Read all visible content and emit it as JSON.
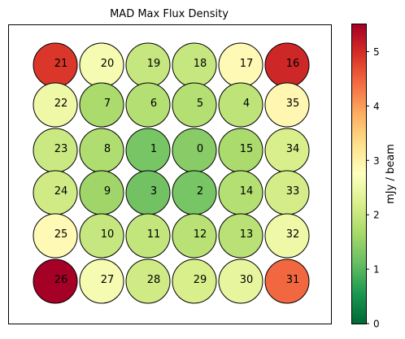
{
  "chart_data": {
    "type": "heatmap",
    "title": "MAD Max Flux Density",
    "xlabel": "",
    "ylabel": "",
    "colorbar": {
      "label": "mJy / beam",
      "range": [
        0,
        5.5
      ],
      "ticks": [
        "0",
        "1",
        "2",
        "3",
        "4",
        "5"
      ],
      "colormap": "RdYlGn_r",
      "colors": [
        "#006837",
        "#1a9850",
        "#66bd63",
        "#a6d96a",
        "#d9ef8b",
        "#ffffbf",
        "#fee08b",
        "#fdae61",
        "#f46d43",
        "#d73027",
        "#a50026"
      ]
    },
    "grid": false,
    "layout": "6 rows x 6 columns of circles",
    "cells": [
      {
        "label": "21",
        "row": 0,
        "col": 0,
        "value": 4.9
      },
      {
        "label": "20",
        "row": 0,
        "col": 1,
        "value": 2.6
      },
      {
        "label": "19",
        "row": 0,
        "col": 2,
        "value": 2.0
      },
      {
        "label": "18",
        "row": 0,
        "col": 3,
        "value": 2.0
      },
      {
        "label": "17",
        "row": 0,
        "col": 4,
        "value": 2.85
      },
      {
        "label": "16",
        "row": 0,
        "col": 5,
        "value": 5.05
      },
      {
        "label": "22",
        "row": 1,
        "col": 0,
        "value": 2.5
      },
      {
        "label": "7",
        "row": 1,
        "col": 1,
        "value": 1.7
      },
      {
        "label": "6",
        "row": 1,
        "col": 2,
        "value": 1.8
      },
      {
        "label": "5",
        "row": 1,
        "col": 3,
        "value": 1.8
      },
      {
        "label": "4",
        "row": 1,
        "col": 4,
        "value": 1.9
      },
      {
        "label": "35",
        "row": 1,
        "col": 5,
        "value": 2.9
      },
      {
        "label": "23",
        "row": 2,
        "col": 0,
        "value": 2.05
      },
      {
        "label": "8",
        "row": 2,
        "col": 1,
        "value": 1.75
      },
      {
        "label": "1",
        "row": 2,
        "col": 2,
        "value": 1.25
      },
      {
        "label": "0",
        "row": 2,
        "col": 3,
        "value": 1.4
      },
      {
        "label": "15",
        "row": 2,
        "col": 4,
        "value": 1.7
      },
      {
        "label": "34",
        "row": 2,
        "col": 5,
        "value": 2.2
      },
      {
        "label": "24",
        "row": 3,
        "col": 0,
        "value": 2.1
      },
      {
        "label": "9",
        "row": 3,
        "col": 1,
        "value": 1.6
      },
      {
        "label": "3",
        "row": 3,
        "col": 2,
        "value": 1.2
      },
      {
        "label": "2",
        "row": 3,
        "col": 3,
        "value": 1.25
      },
      {
        "label": "14",
        "row": 3,
        "col": 4,
        "value": 1.8
      },
      {
        "label": "33",
        "row": 3,
        "col": 5,
        "value": 2.15
      },
      {
        "label": "25",
        "row": 4,
        "col": 0,
        "value": 2.85
      },
      {
        "label": "10",
        "row": 4,
        "col": 1,
        "value": 2.0
      },
      {
        "label": "11",
        "row": 4,
        "col": 2,
        "value": 1.95
      },
      {
        "label": "12",
        "row": 4,
        "col": 3,
        "value": 1.85
      },
      {
        "label": "13",
        "row": 4,
        "col": 4,
        "value": 1.85
      },
      {
        "label": "32",
        "row": 4,
        "col": 5,
        "value": 2.5
      },
      {
        "label": "26",
        "row": 5,
        "col": 0,
        "value": 5.5
      },
      {
        "label": "27",
        "row": 5,
        "col": 1,
        "value": 2.6
      },
      {
        "label": "28",
        "row": 5,
        "col": 2,
        "value": 2.1
      },
      {
        "label": "29",
        "row": 5,
        "col": 3,
        "value": 2.2
      },
      {
        "label": "30",
        "row": 5,
        "col": 4,
        "value": 2.4
      },
      {
        "label": "31",
        "row": 5,
        "col": 5,
        "value": 4.45
      }
    ]
  }
}
